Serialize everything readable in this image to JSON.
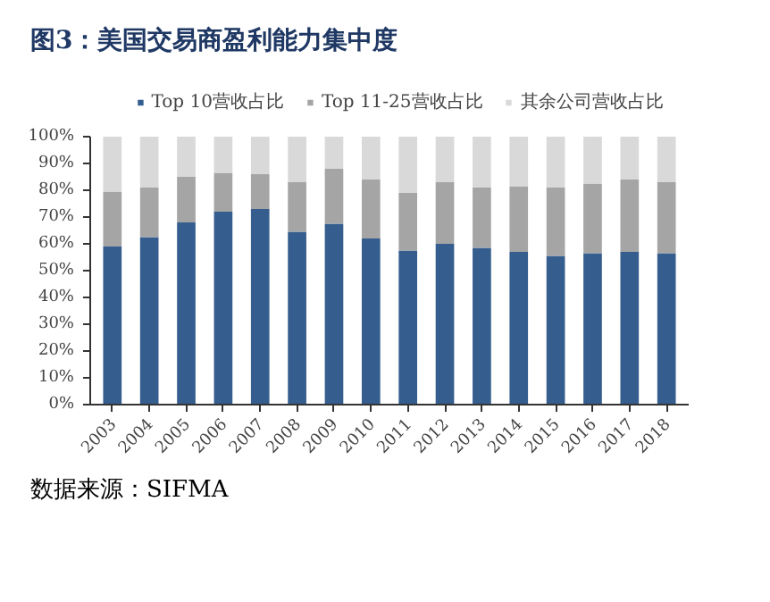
{
  "chart_data": {
    "type": "bar",
    "stacked": true,
    "title": "图3：美国交易商盈利能力集中度",
    "categories": [
      "2003",
      "2004",
      "2005",
      "2006",
      "2007",
      "2008",
      "2009",
      "2010",
      "2011",
      "2012",
      "2013",
      "2014",
      "2015",
      "2016",
      "2017",
      "2018"
    ],
    "series": [
      {
        "name": "Top 10营收占比",
        "color": "#355e8f",
        "values": [
          59,
          62.5,
          68,
          72,
          73,
          64.5,
          67.5,
          62,
          57.5,
          60,
          58.5,
          57,
          55.5,
          56.5,
          57,
          56.5
        ]
      },
      {
        "name": "Top 11-25营收占比",
        "color": "#a5a5a5",
        "values": [
          20.5,
          18.5,
          17,
          14.5,
          13,
          18.5,
          20.5,
          22,
          21.5,
          23,
          22.5,
          24.5,
          25.5,
          26,
          27,
          26.5
        ]
      },
      {
        "name": "其余公司营收占比",
        "color": "#d9d9d9",
        "values": [
          20.5,
          19,
          15,
          13.5,
          14,
          17,
          12,
          16,
          21,
          17,
          19,
          18.5,
          19,
          17.5,
          16,
          17
        ]
      }
    ],
    "ylim": [
      0,
      100
    ],
    "yticks": [
      {
        "value": 0,
        "label": "0%"
      },
      {
        "value": 10,
        "label": "10%"
      },
      {
        "value": 20,
        "label": "20%"
      },
      {
        "value": 30,
        "label": "30%"
      },
      {
        "value": 40,
        "label": "40%"
      },
      {
        "value": 50,
        "label": "50%"
      },
      {
        "value": 60,
        "label": "60%"
      },
      {
        "value": 70,
        "label": "70%"
      },
      {
        "value": 80,
        "label": "80%"
      },
      {
        "value": 90,
        "label": "90%"
      },
      {
        "value": 100,
        "label": "100%"
      }
    ],
    "grid": false,
    "legend": "top",
    "annotations": [
      "数据来源：SIFMA"
    ]
  }
}
